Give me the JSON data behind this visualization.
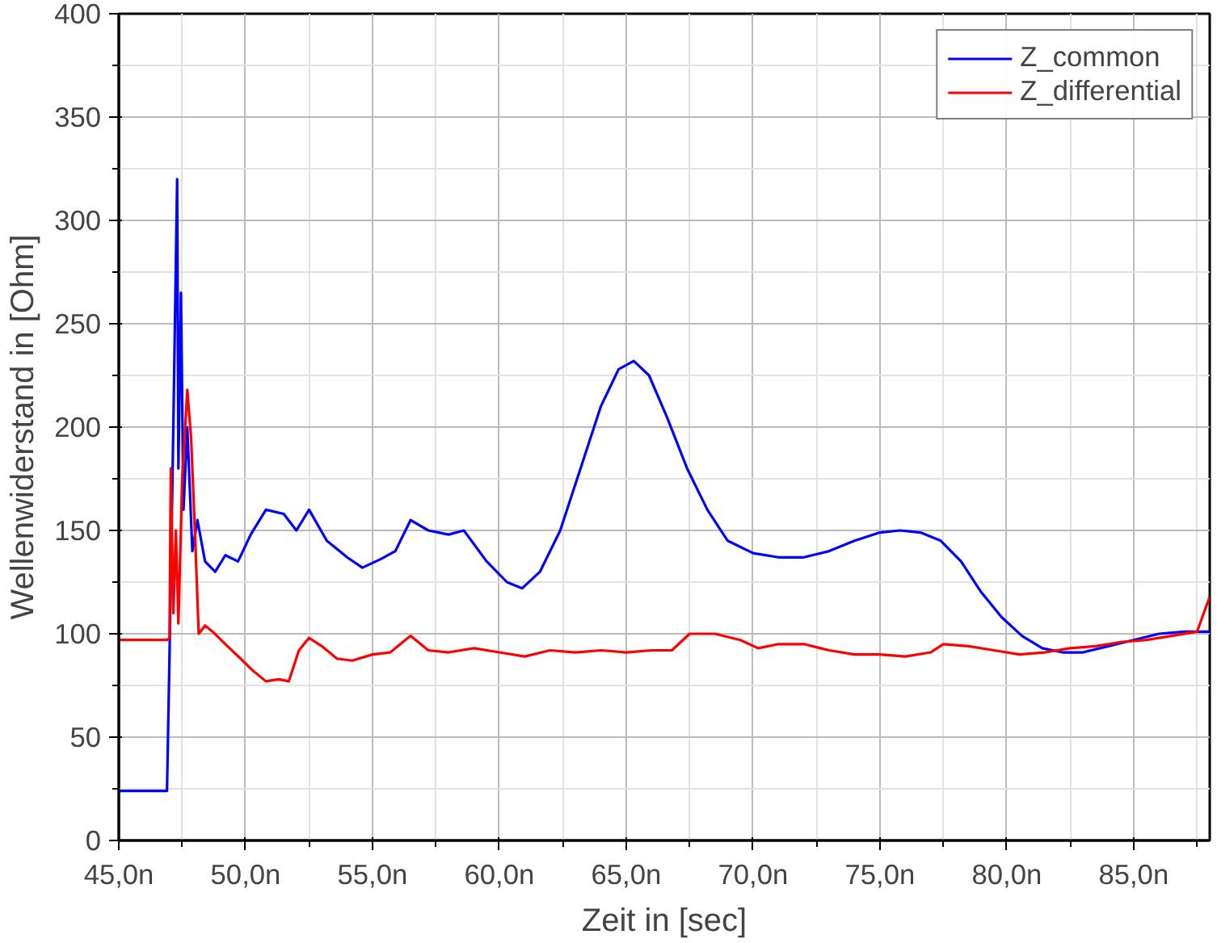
{
  "chart_data": {
    "type": "line",
    "xlabel": "Zeit in [sec]",
    "ylabel": "Wellenwiderstand in [Ohm]",
    "xlim": [
      45,
      88
    ],
    "ylim": [
      0,
      400
    ],
    "xticks": [
      {
        "value": 45,
        "label": "45,0n"
      },
      {
        "value": 50,
        "label": "50,0n"
      },
      {
        "value": 55,
        "label": "55,0n"
      },
      {
        "value": 60,
        "label": "60,0n"
      },
      {
        "value": 65,
        "label": "65,0n"
      },
      {
        "value": 70,
        "label": "70,0n"
      },
      {
        "value": 75,
        "label": "75,0n"
      },
      {
        "value": 80,
        "label": "80,0n"
      },
      {
        "value": 85,
        "label": "85,0n"
      }
    ],
    "yticks": [
      0,
      50,
      100,
      150,
      200,
      250,
      300,
      350,
      400
    ],
    "grid": true,
    "legend": "top right",
    "line_style": "solid",
    "marker": "none",
    "series": [
      {
        "name": "Z_common",
        "color": "#0000ff",
        "x": [
          45,
          46.9,
          47.0,
          47.15,
          47.3,
          47.35,
          47.45,
          47.55,
          47.7,
          47.9,
          48.1,
          48.4,
          48.8,
          49.2,
          49.7,
          50.2,
          50.8,
          51.5,
          52.0,
          52.5,
          53.2,
          54.0,
          54.6,
          55.3,
          55.9,
          56.5,
          57.2,
          58.0,
          58.6,
          59.5,
          60.3,
          60.9,
          61.6,
          62.4,
          63.2,
          64.0,
          64.7,
          65.3,
          65.9,
          66.6,
          67.4,
          68.2,
          69.0,
          70.0,
          71.0,
          72.0,
          73.0,
          74.0,
          75.0,
          75.8,
          76.6,
          77.4,
          78.2,
          79.0,
          79.8,
          80.6,
          81.4,
          82.2,
          83.0,
          84.0,
          85.0,
          86.0,
          87.0,
          88.0
        ],
        "values": [
          24,
          24,
          90,
          200,
          320,
          180,
          265,
          160,
          200,
          140,
          155,
          135,
          130,
          138,
          135,
          148,
          160,
          158,
          150,
          160,
          145,
          137,
          132,
          136,
          140,
          155,
          150,
          148,
          150,
          135,
          125,
          122,
          130,
          150,
          180,
          210,
          228,
          232,
          225,
          205,
          180,
          160,
          145,
          139,
          137,
          137,
          140,
          145,
          149,
          150,
          149,
          145,
          135,
          120,
          108,
          99,
          93,
          91,
          91,
          94,
          97,
          100,
          101,
          101
        ]
      },
      {
        "name": "Z_differential",
        "color": "#ff0000",
        "x": [
          45,
          46.9,
          47.0,
          47.05,
          47.15,
          47.25,
          47.35,
          47.5,
          47.7,
          47.85,
          48.0,
          48.15,
          48.4,
          48.7,
          49.2,
          49.8,
          50.3,
          50.8,
          51.3,
          51.7,
          52.1,
          52.5,
          53.0,
          53.6,
          54.2,
          55.0,
          55.7,
          56.5,
          57.2,
          58.0,
          59.0,
          60.0,
          61.0,
          62.0,
          63.0,
          64.0,
          65.0,
          66.0,
          66.8,
          67.5,
          68.5,
          69.5,
          70.2,
          71.0,
          72.0,
          73.0,
          74.0,
          75.0,
          76.0,
          77.0,
          77.5,
          78.5,
          79.5,
          80.5,
          81.5,
          82.5,
          83.5,
          84.5,
          85.5,
          86.5,
          87.5,
          88.0
        ],
        "values": [
          97,
          97,
          98,
          180,
          110,
          150,
          105,
          175,
          218,
          195,
          150,
          100,
          104,
          101,
          95,
          88,
          82,
          77,
          78,
          77,
          92,
          98,
          94,
          88,
          87,
          90,
          91,
          99,
          92,
          91,
          93,
          91,
          89,
          92,
          91,
          92,
          91,
          92,
          92,
          100,
          100,
          97,
          93,
          95,
          95,
          92,
          90,
          90,
          89,
          91,
          95,
          94,
          92,
          90,
          91,
          93,
          94,
          96,
          97,
          99,
          101,
          118
        ]
      }
    ]
  }
}
